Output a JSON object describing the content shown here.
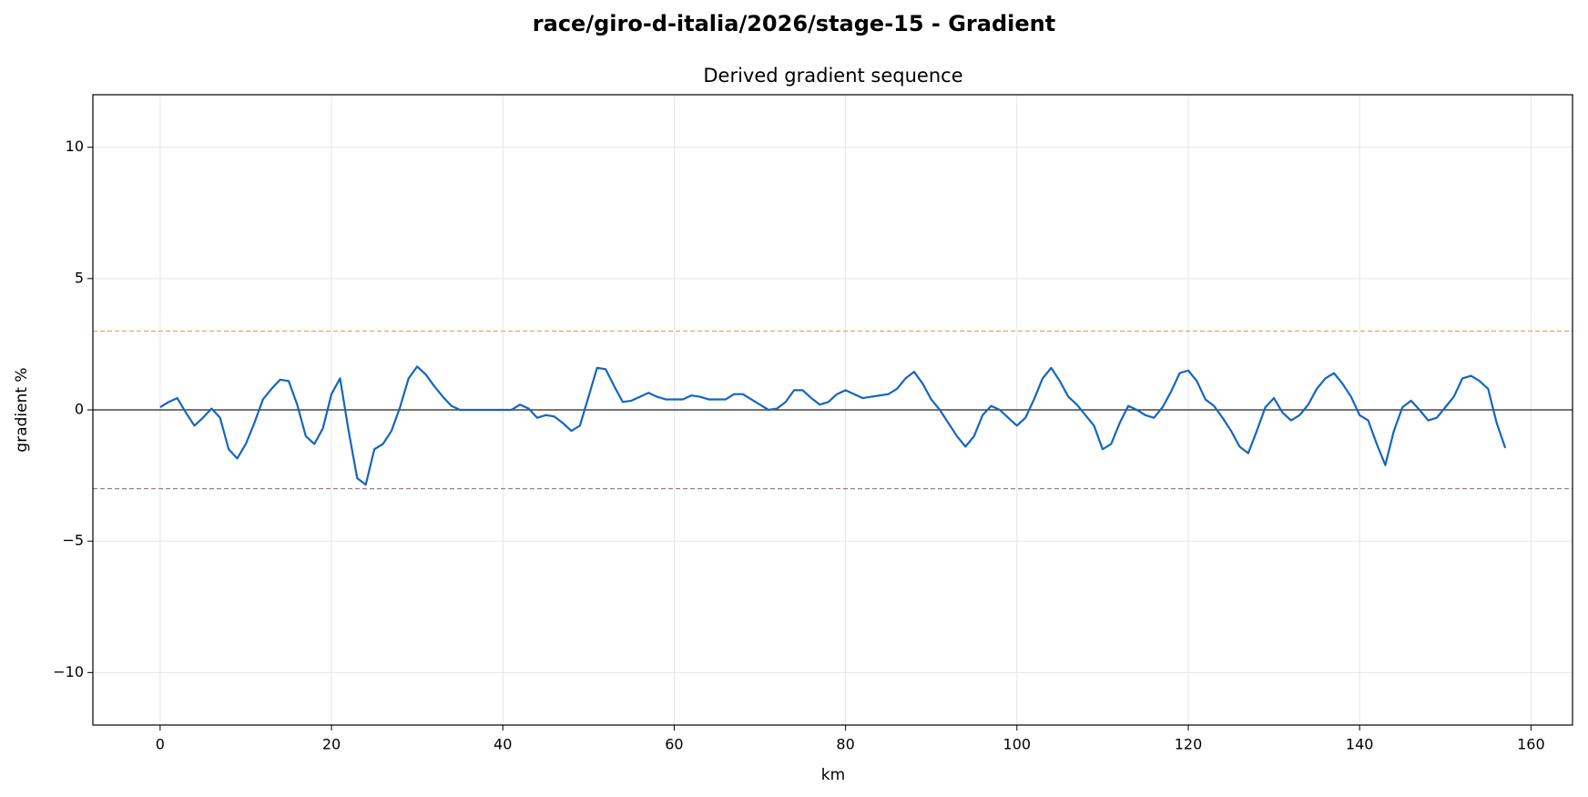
{
  "chart_data": {
    "type": "line",
    "title": "race/giro-d-italia/2026/stage-15 - Gradient",
    "subtitle": "Derived gradient sequence",
    "xlabel": "km",
    "ylabel": "gradient %",
    "x": [
      0,
      1,
      2,
      3,
      4,
      5,
      6,
      7,
      8,
      9,
      10,
      11,
      12,
      13,
      14,
      15,
      16,
      17,
      18,
      19,
      20,
      21,
      22,
      23,
      24,
      25,
      26,
      27,
      28,
      29,
      30,
      31,
      32,
      33,
      34,
      35,
      36,
      37,
      38,
      39,
      40,
      41,
      42,
      43,
      44,
      45,
      46,
      47,
      48,
      49,
      50,
      51,
      52,
      53,
      54,
      55,
      56,
      57,
      58,
      59,
      60,
      61,
      62,
      63,
      64,
      65,
      66,
      67,
      68,
      69,
      70,
      71,
      72,
      73,
      74,
      75,
      76,
      77,
      78,
      79,
      80,
      81,
      82,
      83,
      84,
      85,
      86,
      87,
      88,
      89,
      90,
      91,
      92,
      93,
      94,
      95,
      96,
      97,
      98,
      99,
      100,
      101,
      102,
      103,
      104,
      105,
      106,
      107,
      108,
      109,
      110,
      111,
      112,
      113,
      114,
      115,
      116,
      117,
      118,
      119,
      120,
      121,
      122,
      123,
      124,
      125,
      126,
      127,
      128,
      129,
      130,
      131,
      132,
      133,
      134,
      135,
      136,
      137,
      138,
      139,
      140,
      141,
      142,
      143,
      144,
      145,
      146,
      147,
      148,
      149,
      150,
      151,
      152,
      153,
      154,
      155,
      156,
      157
    ],
    "series": [
      {
        "name": "gradient",
        "color": "#1565c0",
        "values": [
          0.1,
          0.3,
          0.45,
          -0.1,
          -0.6,
          -0.3,
          0.05,
          -0.3,
          -1.5,
          -1.85,
          -1.3,
          -0.5,
          0.4,
          0.8,
          1.15,
          1.1,
          0.2,
          -1.0,
          -1.3,
          -0.7,
          0.6,
          1.2,
          -0.8,
          -2.6,
          -2.85,
          -1.5,
          -1.3,
          -0.8,
          0.1,
          1.2,
          1.65,
          1.35,
          0.9,
          0.5,
          0.15,
          0.0,
          0.0,
          0.0,
          0.0,
          0.0,
          0.0,
          0.0,
          0.2,
          0.05,
          -0.3,
          -0.2,
          -0.25,
          -0.5,
          -0.8,
          -0.6,
          0.5,
          1.6,
          1.55,
          0.9,
          0.3,
          0.35,
          0.5,
          0.65,
          0.5,
          0.4,
          0.4,
          0.4,
          0.55,
          0.5,
          0.4,
          0.4,
          0.4,
          0.6,
          0.6,
          0.4,
          0.2,
          0.0,
          0.05,
          0.3,
          0.75,
          0.75,
          0.45,
          0.2,
          0.3,
          0.6,
          0.75,
          0.6,
          0.45,
          0.5,
          0.55,
          0.6,
          0.8,
          1.2,
          1.45,
          1.0,
          0.4,
          0.0,
          -0.5,
          -1.0,
          -1.4,
          -1.0,
          -0.2,
          0.15,
          0.0,
          -0.3,
          -0.6,
          -0.3,
          0.4,
          1.2,
          1.6,
          1.1,
          0.5,
          0.2,
          -0.2,
          -0.6,
          -1.5,
          -1.3,
          -0.5,
          0.15,
          0.0,
          -0.2,
          -0.3,
          0.1,
          0.7,
          1.4,
          1.5,
          1.1,
          0.4,
          0.15,
          -0.3,
          -0.8,
          -1.4,
          -1.65,
          -0.8,
          0.1,
          0.45,
          -0.1,
          -0.4,
          -0.2,
          0.2,
          0.8,
          1.2,
          1.4,
          1.0,
          0.5,
          -0.2,
          -0.4,
          -1.3,
          -2.1,
          -0.8,
          0.1,
          0.35,
          0.0,
          -0.4,
          -0.3,
          0.1,
          0.5,
          1.2,
          1.3,
          1.1,
          0.8,
          -0.5,
          -1.45
        ]
      }
    ],
    "hlines": [
      {
        "value": 3,
        "color": "#f5a742",
        "style": "dashed"
      },
      {
        "value": -3,
        "color": "#a07882",
        "style": "dashed"
      },
      {
        "value": 0,
        "color": "#222222",
        "style": "solid"
      }
    ],
    "xlim": [
      -7.85,
      164.85
    ],
    "xticks": [
      0,
      20,
      40,
      60,
      80,
      100,
      120,
      140,
      160
    ],
    "ylim": [
      -12,
      12
    ],
    "yticks": [
      {
        "value": -10,
        "label": "−10"
      },
      {
        "value": -5,
        "label": "−5"
      },
      0,
      5,
      10
    ],
    "grid": true
  }
}
